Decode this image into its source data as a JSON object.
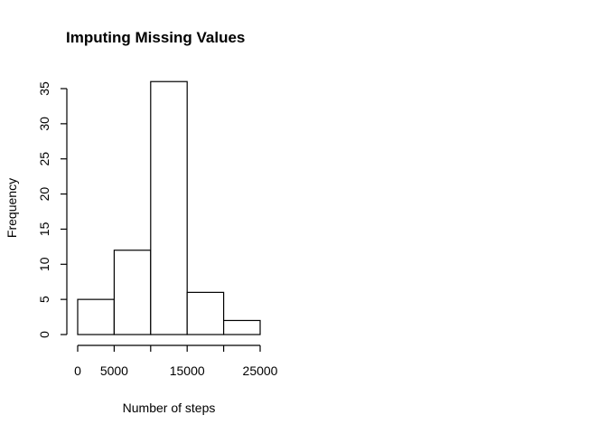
{
  "chart_data": {
    "type": "bar",
    "title": "Imputing Missing Values",
    "xlabel": "Number of steps",
    "ylabel": "Frequency",
    "bins": [
      {
        "start": 0,
        "end": 5000,
        "count": 5
      },
      {
        "start": 5000,
        "end": 10000,
        "count": 12
      },
      {
        "start": 10000,
        "end": 15000,
        "count": 36
      },
      {
        "start": 15000,
        "end": 20000,
        "count": 6
      },
      {
        "start": 20000,
        "end": 25000,
        "count": 2
      }
    ],
    "xlim": [
      0,
      25000
    ],
    "ylim": [
      0,
      35
    ],
    "x_ticks": [
      0,
      5000,
      15000,
      25000
    ],
    "x_tick_marks": [
      0,
      5000,
      10000,
      15000,
      20000,
      25000
    ],
    "y_ticks": [
      0,
      5,
      10,
      15,
      20,
      25,
      30,
      35
    ],
    "grid": false,
    "bar_fill": "#ffffff",
    "bar_stroke": "#000000"
  }
}
